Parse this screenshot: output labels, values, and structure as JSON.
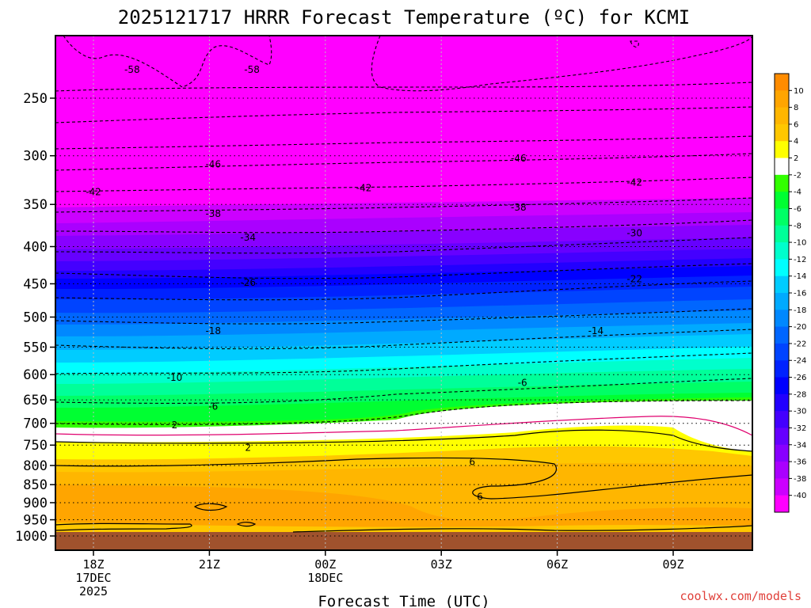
{
  "chart_data": {
    "type": "heatmap",
    "title": "2025121717 HRRR Forecast Temperature (ºC) for KCMI",
    "xlabel": "Forecast Time (UTC)",
    "ylabel": "",
    "credit": "coolwx.com/models",
    "y_scale": "log-pressure",
    "y_ticks": [
      250,
      300,
      350,
      400,
      450,
      500,
      550,
      600,
      650,
      700,
      750,
      800,
      850,
      900,
      950,
      1000
    ],
    "x_ticks": [
      {
        "label": "18Z",
        "date": "17DEC",
        "year": "2025"
      },
      {
        "label": "21Z",
        "date": "",
        "year": ""
      },
      {
        "label": "00Z",
        "date": "18DEC",
        "year": ""
      },
      {
        "label": "03Z",
        "date": "",
        "year": ""
      },
      {
        "label": "06Z",
        "date": "",
        "year": ""
      },
      {
        "label": "09Z",
        "date": "",
        "year": ""
      }
    ],
    "colorbar": {
      "labels": [
        "10",
        "8",
        "6",
        "4",
        "2",
        "-2",
        "-4",
        "-6",
        "-8",
        "-10",
        "-12",
        "-14",
        "-16",
        "-18",
        "-20",
        "-22",
        "-24",
        "-26",
        "-28",
        "-30",
        "-32",
        "-34",
        "-36",
        "-38",
        "-40"
      ],
      "colors": [
        "#ff8c00",
        "#ffa500",
        "#ffb600",
        "#ffc700",
        "#ffff00",
        "#ffffff",
        "#32ff00",
        "#00ff32",
        "#00ff66",
        "#00ff99",
        "#00ffcc",
        "#00ffff",
        "#00ccff",
        "#00aaff",
        "#0088ff",
        "#0066ff",
        "#0044ff",
        "#0022ff",
        "#0000ff",
        "#2200ff",
        "#4400ff",
        "#6600ff",
        "#8800ff",
        "#aa00ff",
        "#cc00ff",
        "#ff00ff"
      ]
    },
    "contour_labels": [
      {
        "text": "-58",
        "time": 19.0,
        "p": 228
      },
      {
        "text": "-58",
        "time": 22.1,
        "p": 228
      },
      {
        "text": "-46",
        "time": 21.1,
        "p": 308
      },
      {
        "text": "-46",
        "time": 29.0,
        "p": 302
      },
      {
        "text": "-42",
        "time": 18.0,
        "p": 336
      },
      {
        "text": "-42",
        "time": 25.0,
        "p": 332
      },
      {
        "text": "-42",
        "time": 32.0,
        "p": 326
      },
      {
        "text": "-38",
        "time": 21.1,
        "p": 360
      },
      {
        "text": "-38",
        "time": 29.0,
        "p": 353
      },
      {
        "text": "-34",
        "time": 22.0,
        "p": 388
      },
      {
        "text": "-30",
        "time": 32.0,
        "p": 383
      },
      {
        "text": "-26",
        "time": 22.0,
        "p": 448
      },
      {
        "text": "-22",
        "time": 32.0,
        "p": 443
      },
      {
        "text": "-18",
        "time": 21.1,
        "p": 522
      },
      {
        "text": "-14",
        "time": 31.0,
        "p": 522
      },
      {
        "text": "-10",
        "time": 20.1,
        "p": 605
      },
      {
        "text": "-6",
        "time": 21.1,
        "p": 663
      },
      {
        "text": "-6",
        "time": 29.1,
        "p": 615
      },
      {
        "text": "2",
        "time": 20.1,
        "p": 703
      },
      {
        "text": "2",
        "time": 22.0,
        "p": 755
      },
      {
        "text": "6",
        "time": 27.8,
        "p": 790
      },
      {
        "text": "6",
        "time": 28.0,
        "p": 882
      }
    ]
  }
}
